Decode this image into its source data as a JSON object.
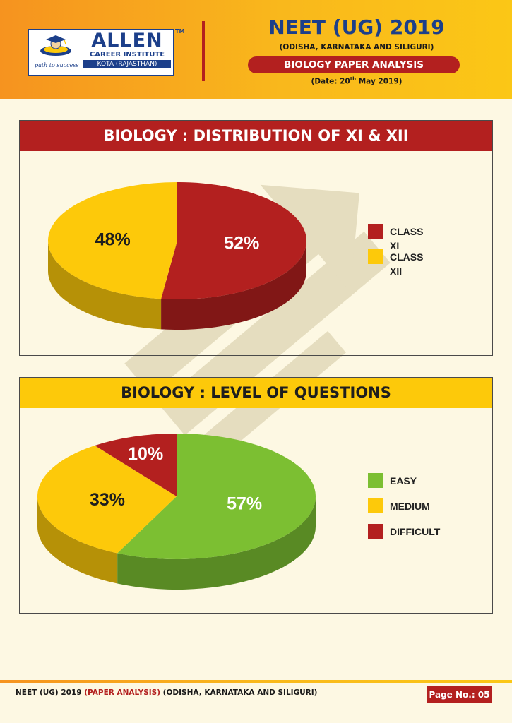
{
  "header": {
    "logo": {
      "brand": "ALLEN",
      "institute": "CAREER INSTITUTE",
      "location": "KOTA (RAJASTHAN)",
      "tagline": "path to success",
      "tm": "TM"
    },
    "title": "NEET (UG) 2019",
    "subtitle": "(ODISHA, KARNATAKA AND SILIGURI)",
    "paper": "BIOLOGY PAPER ANALYSIS",
    "date_prefix": "(Date: 20",
    "date_sup": "th",
    "date_suffix": " May 2019)"
  },
  "watermark": "ALLEN",
  "chart_data": [
    {
      "type": "pie",
      "title": "BIOLOGY : DISTRIBUTION OF XI & XII",
      "categories": [
        "CLASS XI",
        "CLASS XII"
      ],
      "values": [
        52,
        48
      ],
      "labels": [
        "52%",
        "48%"
      ],
      "colors": [
        "#b3201f",
        "#fdc90a"
      ],
      "legend": "right"
    },
    {
      "type": "pie",
      "title": "BIOLOGY : LEVEL OF QUESTIONS",
      "categories": [
        "EASY",
        "MEDIUM",
        "DIFFICULT"
      ],
      "values": [
        57,
        33,
        10
      ],
      "labels": [
        "57%",
        "33%",
        "10%"
      ],
      "colors": [
        "#7cbf32",
        "#fdc90a",
        "#b3201f"
      ],
      "legend": "right"
    }
  ],
  "footer": {
    "text_blue": "NEET (UG) 2019 ",
    "text_red": "(PAPER ANALYSIS)",
    "text_rest": " (ODISHA, KARNATAKA AND SILIGURI)",
    "page_label": "Page No.: 05"
  }
}
